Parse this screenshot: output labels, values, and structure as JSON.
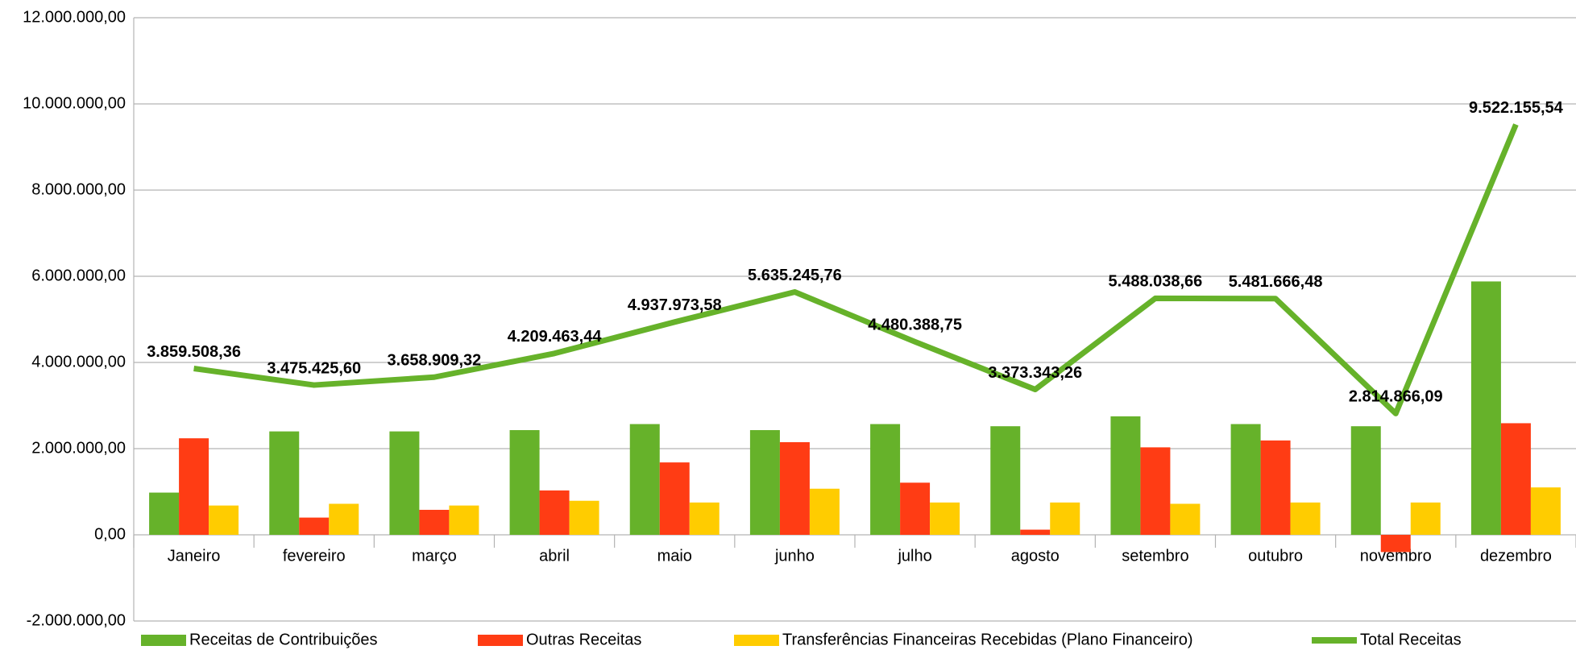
{
  "chart_data": {
    "type": "bar",
    "categories": [
      "Janeiro",
      "fevereiro",
      "março",
      "abril",
      "maio",
      "junho",
      "julho",
      "agosto",
      "setembro",
      "outubro",
      "novembro",
      "dezembro"
    ],
    "series": [
      {
        "name": "Receitas de Contribuições",
        "color": "#66b22a",
        "values": [
          980000,
          2400000,
          2400000,
          2430000,
          2570000,
          2430000,
          2570000,
          2520000,
          2750000,
          2570000,
          2520000,
          5880000
        ]
      },
      {
        "name": "Outras Receitas",
        "color": "#ff3c14",
        "values": [
          2240000,
          400000,
          580000,
          1030000,
          1680000,
          2150000,
          1210000,
          120000,
          2030000,
          2190000,
          -400000,
          2590000
        ]
      },
      {
        "name": "Transferências Financeiras Recebidas (Plano Financeiro)",
        "color": "#ffcc00",
        "values": [
          680000,
          720000,
          680000,
          790000,
          750000,
          1070000,
          750000,
          750000,
          720000,
          750000,
          750000,
          1100000
        ]
      },
      {
        "name": "Total Receitas",
        "type": "line",
        "color": "#66b22a",
        "values": [
          3859508.36,
          3475425.6,
          3658909.32,
          4209463.44,
          4937973.58,
          5635245.76,
          4480388.75,
          3373343.26,
          5488038.66,
          5481666.48,
          2814866.09,
          9522155.54
        ],
        "value_labels": [
          "3.859.508,36",
          "3.475.425,60",
          "3.658.909,32",
          "4.209.463,44",
          "4.937.973,58",
          "5.635.245,76",
          "4.480.388,75",
          "3.373.343,26",
          "5.488.038,66",
          "5.481.666,48",
          "2.814.866,09",
          "9.522.155,54"
        ]
      }
    ],
    "ylim": [
      -2000000,
      12000000
    ],
    "yticks": [
      {
        "value": -2000000,
        "label": "-2.000.000,00"
      },
      {
        "value": 0,
        "label": "0,00"
      },
      {
        "value": 2000000,
        "label": "2.000.000,00"
      },
      {
        "value": 4000000,
        "label": "4.000.000,00"
      },
      {
        "value": 6000000,
        "label": "6.000.000,00"
      },
      {
        "value": 8000000,
        "label": "8.000.000,00"
      },
      {
        "value": 10000000,
        "label": "10.000.000,00"
      },
      {
        "value": 12000000,
        "label": "12.000.000,00"
      }
    ],
    "grid": true,
    "legend": "bottom"
  }
}
